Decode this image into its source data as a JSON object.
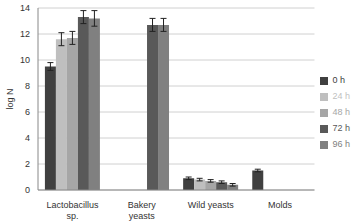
{
  "chart_data": {
    "type": "bar",
    "categories": [
      "Lactobacillus sp.",
      "Bakery yeasts",
      "Wild yeasts",
      "Molds"
    ],
    "series": [
      {
        "name": "0 h",
        "color": "#404040",
        "values": [
          9.5,
          null,
          0.9,
          1.5
        ],
        "errors": [
          0.3,
          null,
          0.1,
          0.1
        ]
      },
      {
        "name": "24 h",
        "color": "#bfbfbf",
        "values": [
          11.6,
          null,
          0.8,
          null
        ],
        "errors": [
          0.5,
          null,
          0.1,
          null
        ]
      },
      {
        "name": "48 h",
        "color": "#a6a6a6",
        "values": [
          11.7,
          null,
          0.7,
          null
        ],
        "errors": [
          0.5,
          null,
          0.1,
          null
        ]
      },
      {
        "name": "72 h",
        "color": "#595959",
        "values": [
          13.3,
          12.7,
          0.6,
          null
        ],
        "errors": [
          0.5,
          0.5,
          0.1,
          null
        ]
      },
      {
        "name": "96 h",
        "color": "#808080",
        "values": [
          13.2,
          12.7,
          0.4,
          null
        ],
        "errors": [
          0.6,
          0.5,
          0.1,
          null
        ]
      }
    ],
    "y_label": "log N",
    "ylim": [
      0,
      14
    ],
    "yticks": [
      0,
      2,
      4,
      6,
      8,
      10,
      12,
      14
    ],
    "grid": true,
    "legend": "right"
  }
}
